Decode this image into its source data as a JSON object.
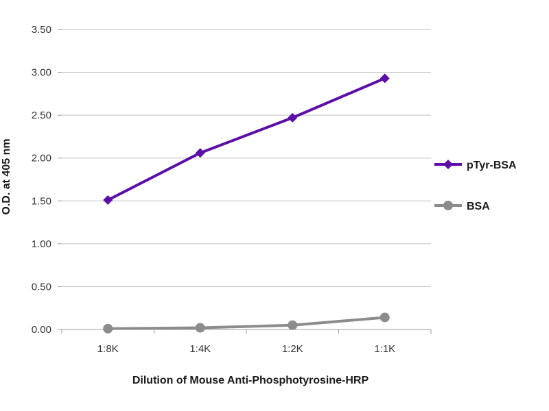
{
  "chart_data": {
    "type": "line",
    "title": "",
    "xlabel": "Dilution of Mouse Anti-Phosphotyrosine-HRP",
    "ylabel": "O.D. at 405 nm",
    "categories": [
      "1:8K",
      "1:4K",
      "1:2K",
      "1:1K"
    ],
    "ylim": [
      0,
      3.5
    ],
    "yticks": [
      "0.00",
      "0.50",
      "1.00",
      "1.50",
      "2.00",
      "2.50",
      "3.00",
      "3.50"
    ],
    "grid": true,
    "legend": "right",
    "series": [
      {
        "name": "pTyr-BSA",
        "values": [
          1.51,
          2.06,
          2.47,
          2.93
        ],
        "color": "#5b0fa8",
        "marker": "diamond"
      },
      {
        "name": "BSA",
        "values": [
          0.01,
          0.02,
          0.05,
          0.14
        ],
        "color": "#8c8c8c",
        "marker": "circle"
      }
    ]
  }
}
